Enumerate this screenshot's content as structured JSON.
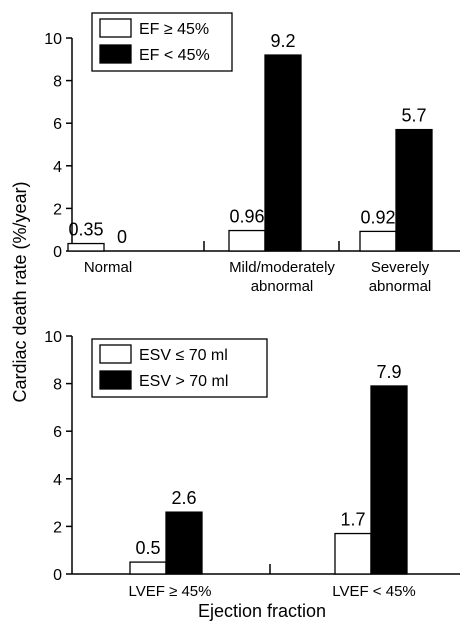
{
  "figure": {
    "ylabel": "Cardiac death rate (%/year)",
    "xlabel": "Ejection fraction"
  },
  "chart_data": [
    {
      "type": "bar",
      "categories": [
        "Normal",
        "Mild/moderately abnormal",
        "Severely abnormal"
      ],
      "category_lines": [
        [
          "Normal"
        ],
        [
          "Mild/moderately",
          "abnormal"
        ],
        [
          "Severely",
          "abnormal"
        ]
      ],
      "series": [
        {
          "name": "EF ≥ 45%",
          "values": [
            0.35,
            0.96,
            0.92
          ],
          "labels": [
            "0.35",
            "0.96",
            "0.92"
          ],
          "color": "#ffffff"
        },
        {
          "name": "EF < 45%",
          "values": [
            0,
            9.2,
            5.7
          ],
          "labels": [
            "0",
            "9.2",
            "5.7"
          ],
          "color": "#000000"
        }
      ],
      "ylim": [
        0,
        10
      ],
      "yticks": [
        0,
        2,
        4,
        6,
        8,
        10
      ],
      "legend": "top-left",
      "grid": false
    },
    {
      "type": "bar",
      "categories": [
        "LVEF ≥ 45%",
        "LVEF < 45%"
      ],
      "category_lines": [
        [
          "LVEF ≥ 45%"
        ],
        [
          "LVEF < 45%"
        ]
      ],
      "series": [
        {
          "name": "ESV ≤ 70 ml",
          "values": [
            0.5,
            1.7
          ],
          "labels": [
            "0.5",
            "1.7"
          ],
          "color": "#ffffff"
        },
        {
          "name": "ESV > 70 ml",
          "values": [
            2.6,
            7.9
          ],
          "labels": [
            "2.6",
            "7.9"
          ],
          "color": "#000000"
        }
      ],
      "ylim": [
        0,
        10
      ],
      "yticks": [
        0,
        2,
        4,
        6,
        8,
        10
      ],
      "legend": "top-left",
      "grid": false
    }
  ]
}
